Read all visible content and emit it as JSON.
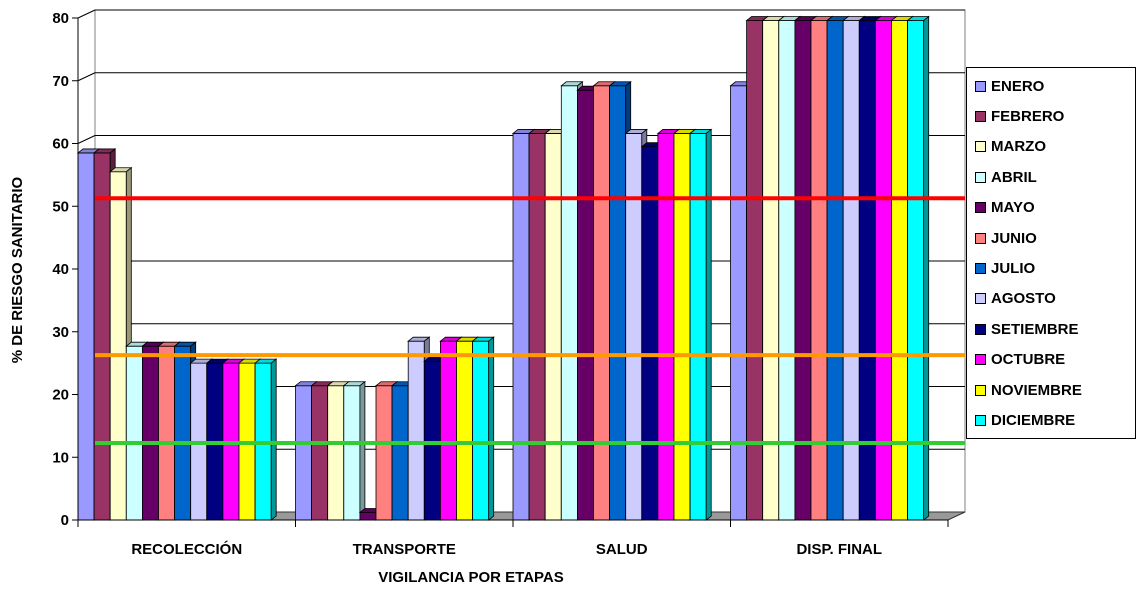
{
  "chart_data": {
    "type": "bar",
    "xlabel": "VIGILANCIA POR ETAPAS",
    "ylabel": "% DE RIESGO SANITARIO",
    "ylim": [
      0,
      80
    ],
    "yticks": [
      0,
      10,
      20,
      30,
      40,
      50,
      60,
      70,
      80
    ],
    "grid": true,
    "legend_position": "right",
    "categories": [
      "RECOLECCIÓN",
      "TRANSPORTE",
      "SALUD",
      "DISP. FINAL"
    ],
    "series": [
      {
        "name": "ENERO",
        "color": "#9999ff",
        "values": [
          58.5,
          21.4,
          61.6,
          69.2
        ]
      },
      {
        "name": "FEBRERO",
        "color": "#993366",
        "values": [
          58.5,
          21.4,
          61.6,
          79.6
        ]
      },
      {
        "name": "MARZO",
        "color": "#ffffcc",
        "values": [
          55.5,
          21.4,
          61.6,
          79.6
        ]
      },
      {
        "name": "ABRIL",
        "color": "#ccffff",
        "values": [
          27.7,
          21.4,
          69.2,
          79.6
        ]
      },
      {
        "name": "MAYO",
        "color": "#660066",
        "values": [
          27.7,
          1.2,
          68.5,
          79.6
        ]
      },
      {
        "name": "JUNIO",
        "color": "#ff8080",
        "values": [
          27.7,
          21.4,
          69.2,
          79.6
        ]
      },
      {
        "name": "JULIO",
        "color": "#0066cc",
        "values": [
          27.7,
          21.4,
          69.2,
          79.6
        ]
      },
      {
        "name": "AGOSTO",
        "color": "#ccccff",
        "values": [
          25.0,
          28.5,
          61.6,
          79.6
        ]
      },
      {
        "name": "SETIEMBRE",
        "color": "#000080",
        "values": [
          25.0,
          25.3,
          59.5,
          79.6
        ]
      },
      {
        "name": "OCTUBRE",
        "color": "#ff00ff",
        "values": [
          25.0,
          28.5,
          61.6,
          79.6
        ]
      },
      {
        "name": "NOVIEMBRE",
        "color": "#ffff00",
        "values": [
          25.0,
          28.5,
          61.6,
          79.6
        ]
      },
      {
        "name": "DICIEMBRE",
        "color": "#00ffff",
        "values": [
          25.0,
          28.5,
          61.6,
          79.6
        ]
      }
    ],
    "reference_lines": [
      {
        "value": 50,
        "color": "#ff0000"
      },
      {
        "value": 25,
        "color": "#ff9900"
      },
      {
        "value": 11,
        "color": "#33cc33"
      }
    ]
  }
}
